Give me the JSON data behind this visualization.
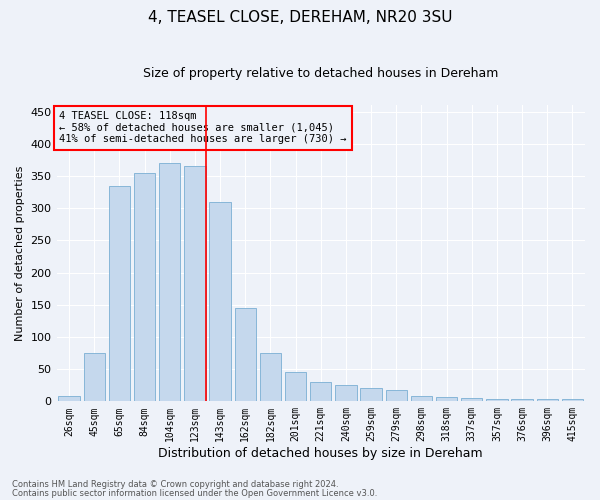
{
  "title": "4, TEASEL CLOSE, DEREHAM, NR20 3SU",
  "subtitle": "Size of property relative to detached houses in Dereham",
  "xlabel": "Distribution of detached houses by size in Dereham",
  "ylabel": "Number of detached properties",
  "categories": [
    "26sqm",
    "45sqm",
    "65sqm",
    "84sqm",
    "104sqm",
    "123sqm",
    "143sqm",
    "162sqm",
    "182sqm",
    "201sqm",
    "221sqm",
    "240sqm",
    "259sqm",
    "279sqm",
    "298sqm",
    "318sqm",
    "337sqm",
    "357sqm",
    "376sqm",
    "396sqm",
    "415sqm"
  ],
  "values": [
    8,
    75,
    335,
    355,
    370,
    365,
    310,
    145,
    75,
    45,
    30,
    25,
    20,
    18,
    8,
    7,
    5,
    4,
    3,
    3,
    4
  ],
  "bar_color": "#c5d8ed",
  "bar_edge_color": "#7aafd4",
  "annotation_text_line1": "4 TEASEL CLOSE: 118sqm",
  "annotation_text_line2": "← 58% of detached houses are smaller (1,045)",
  "annotation_text_line3": "41% of semi-detached houses are larger (730) →",
  "vline_x_index": 5,
  "ylim": [
    0,
    460
  ],
  "yticks": [
    0,
    50,
    100,
    150,
    200,
    250,
    300,
    350,
    400,
    450
  ],
  "footer1": "Contains HM Land Registry data © Crown copyright and database right 2024.",
  "footer2": "Contains public sector information licensed under the Open Government Licence v3.0.",
  "background_color": "#eef2f9",
  "grid_color": "#ffffff",
  "title_fontsize": 11,
  "subtitle_fontsize": 9,
  "ylabel_fontsize": 8,
  "xlabel_fontsize": 9,
  "tick_label_fontsize": 7,
  "annotation_fontsize": 7.5,
  "footer_fontsize": 6
}
